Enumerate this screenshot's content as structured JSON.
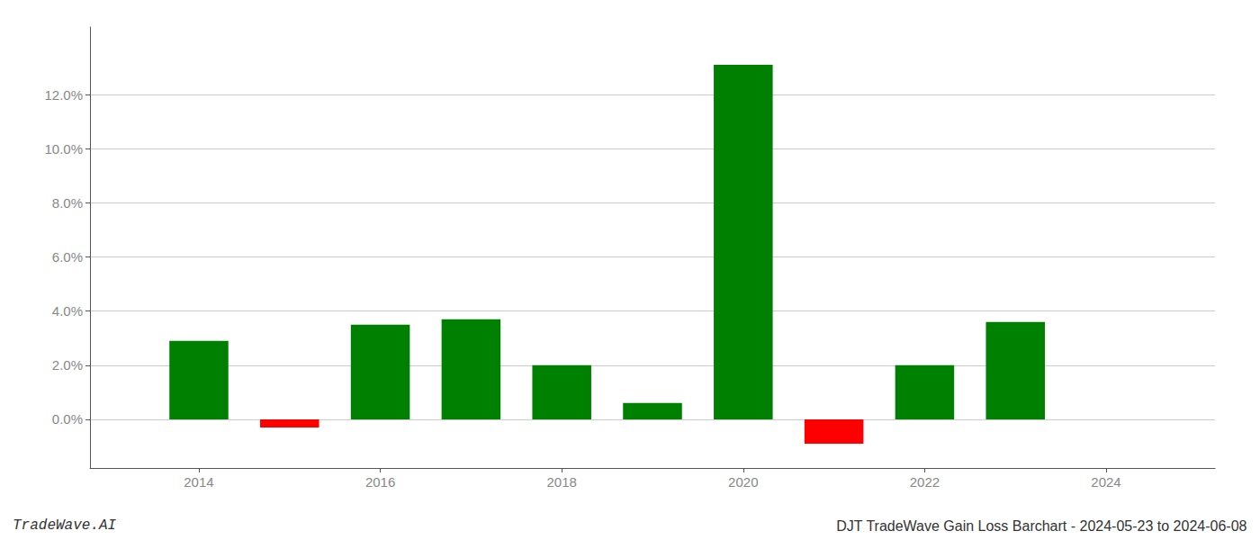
{
  "chart_data": {
    "type": "bar",
    "x": [
      2014,
      2015,
      2016,
      2017,
      2018,
      2019,
      2020,
      2021,
      2022,
      2023
    ],
    "values": [
      0.029,
      -0.003,
      0.035,
      0.037,
      0.02,
      0.006,
      0.131,
      -0.009,
      0.02,
      0.036
    ],
    "colors": [
      "#008000",
      "#ff0000",
      "#008000",
      "#008000",
      "#008000",
      "#008000",
      "#008000",
      "#ff0000",
      "#008000",
      "#008000"
    ],
    "xlim": [
      2012.8,
      2025.2
    ],
    "xticks": [
      2014,
      2016,
      2018,
      2020,
      2022,
      2024
    ],
    "ylim": [
      -0.018,
      0.145
    ],
    "yticks": [
      {
        "value": 0.0,
        "label": "0.0%"
      },
      {
        "value": 0.02,
        "label": "2.0%"
      },
      {
        "value": 0.04,
        "label": "4.0%"
      },
      {
        "value": 0.06,
        "label": "6.0%"
      },
      {
        "value": 0.08,
        "label": "8.0%"
      },
      {
        "value": 0.1,
        "label": "10.0%"
      },
      {
        "value": 0.12,
        "label": "12.0%"
      }
    ],
    "grid": true,
    "annotations": [
      "TradeWave.AI",
      "DJT TradeWave Gain Loss Barchart - 2024-05-23 to 2024-06-08"
    ]
  }
}
